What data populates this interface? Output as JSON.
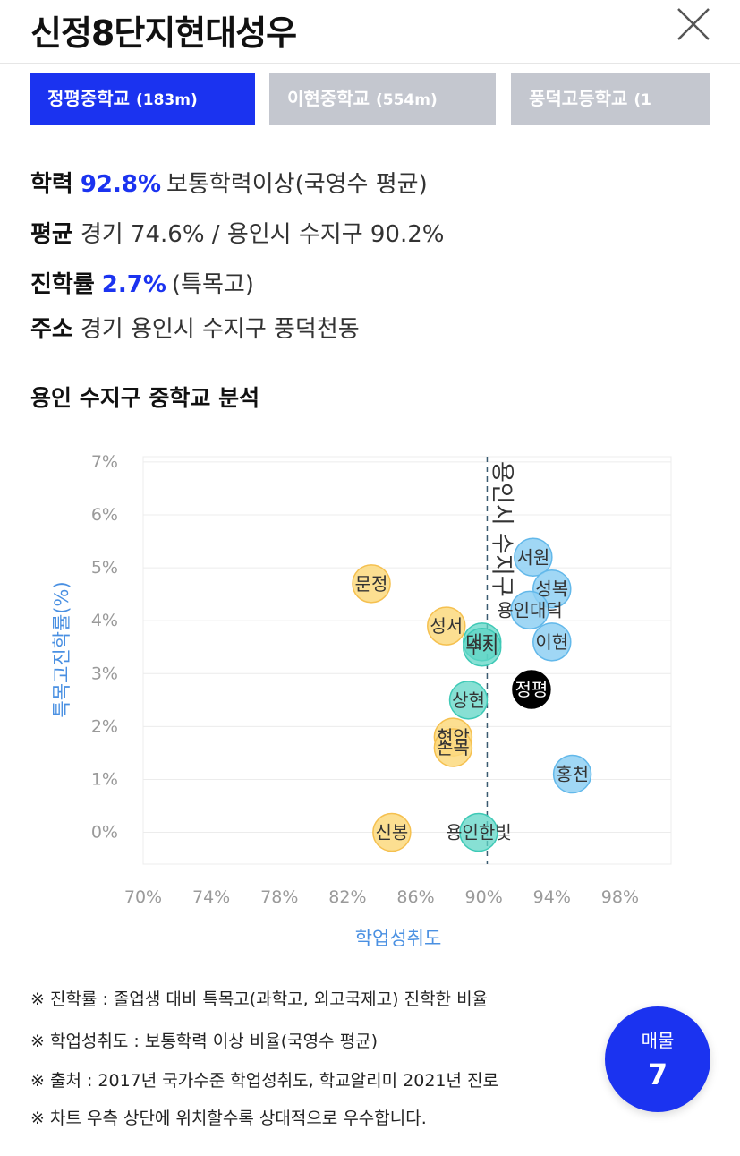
{
  "header": {
    "title": "신정8단지현대성우"
  },
  "tabs": [
    {
      "name": "정평중학교",
      "distance": "(183m)",
      "active": true
    },
    {
      "name": "이현중학교",
      "distance": "(554m)",
      "active": false
    },
    {
      "name": "풍덕고등학교",
      "distance": "(1",
      "active": false
    }
  ],
  "info": {
    "achievement": {
      "label": "학력",
      "value": "92.8%",
      "desc": "보통학력이상(국영수 평균)"
    },
    "average": {
      "label": "평균",
      "text": "경기 74.6% / 용인시 수지구 90.2%"
    },
    "advancement": {
      "label": "진학률",
      "value": "2.7%",
      "desc": "(특목고)"
    },
    "address": {
      "label": "주소",
      "text": "경기 용인시 수지구 풍덕천동"
    }
  },
  "section_title": "용인 수지구 중학교 분석",
  "chart_data": {
    "type": "scatter",
    "xlabel": "학업성취도",
    "ylabel": "특목고진학률(%)",
    "x_ticks": [
      "70%",
      "74%",
      "78%",
      "82%",
      "86%",
      "90%",
      "94%",
      "98%"
    ],
    "y_ticks": [
      "0%",
      "1%",
      "2%",
      "3%",
      "4%",
      "5%",
      "6%",
      "7%"
    ],
    "xlim": [
      70,
      101
    ],
    "ylim": [
      -0.6,
      7.1
    ],
    "reference_line": {
      "x": 90.2,
      "label": "용인시 수지구"
    },
    "colors": {
      "yellow": "#fbd97e",
      "blue": "#8fd0f3",
      "teal": "#5fd6c6",
      "black": "#000000",
      "accent": "#1b33f0"
    },
    "points": [
      {
        "label": "서원",
        "x": 92.9,
        "y": 5.2,
        "color": "blue"
      },
      {
        "label": "성복",
        "x": 94.0,
        "y": 4.6,
        "color": "blue"
      },
      {
        "label": "용인대덕",
        "x": 92.7,
        "y": 4.2,
        "color": "blue"
      },
      {
        "label": "이현",
        "x": 94.0,
        "y": 3.6,
        "color": "blue"
      },
      {
        "label": "홍천",
        "x": 95.2,
        "y": 1.1,
        "color": "blue"
      },
      {
        "label": "문정",
        "x": 83.4,
        "y": 4.7,
        "color": "yellow"
      },
      {
        "label": "성서",
        "x": 87.8,
        "y": 3.9,
        "color": "yellow"
      },
      {
        "label": "현암",
        "x": 88.2,
        "y": 1.8,
        "color": "yellow"
      },
      {
        "label": "손곡",
        "x": 88.2,
        "y": 1.6,
        "color": "yellow"
      },
      {
        "label": "신봉",
        "x": 84.6,
        "y": 0.0,
        "color": "yellow"
      },
      {
        "label": "대지",
        "x": 89.9,
        "y": 3.6,
        "color": "teal"
      },
      {
        "label": "수지",
        "x": 89.9,
        "y": 3.5,
        "color": "teal"
      },
      {
        "label": "상현",
        "x": 89.1,
        "y": 2.5,
        "color": "teal"
      },
      {
        "label": "용인한빛",
        "x": 89.7,
        "y": 0.0,
        "color": "teal"
      },
      {
        "label": "정평",
        "x": 92.8,
        "y": 2.7,
        "color": "black"
      }
    ]
  },
  "notes": [
    "※ 진학률 : 졸업생 대비 특목고(과학고, 외고국제고) 진학한 비율",
    "※ 학업성취도 : 보통학력 이상 비율(국영수 평균)",
    "※ 출처 : 2017년 국가수준 학업성취도, 학교알리미 2021년 진로",
    "※ 차트 우측 상단에 위치할수록 상대적으로 우수합니다."
  ],
  "fab": {
    "label": "매물",
    "count": "7"
  }
}
